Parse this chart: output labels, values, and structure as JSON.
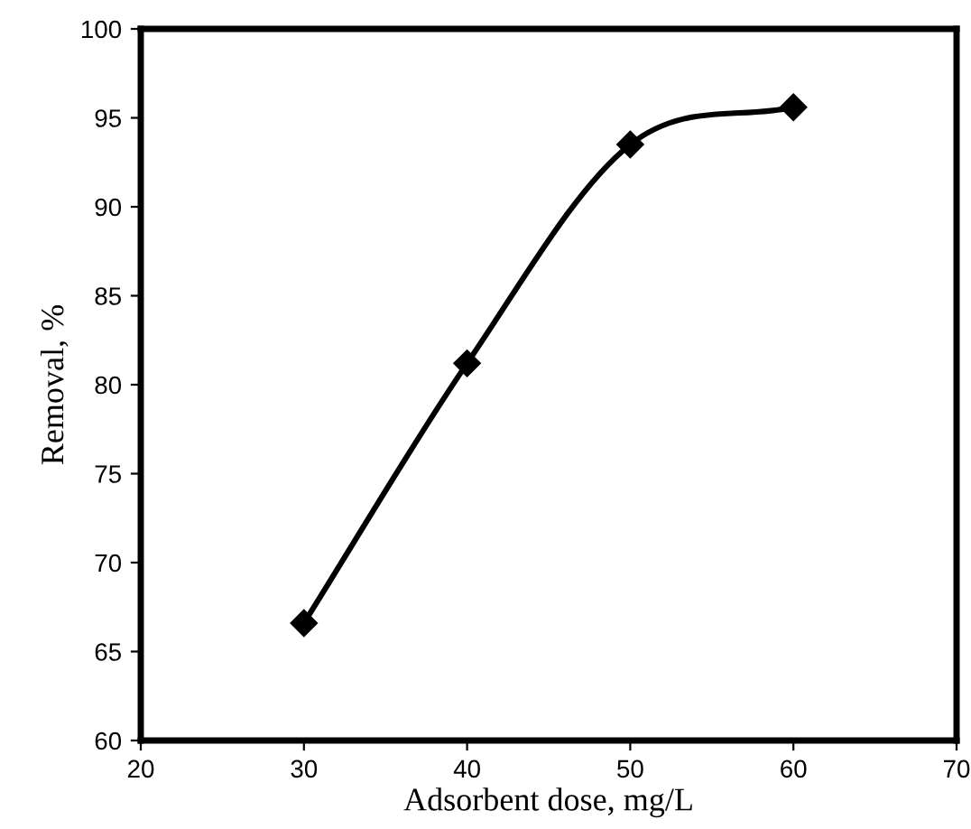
{
  "chart_data": {
    "type": "line",
    "xlabel": "Adsorbent dose, mg/L",
    "ylabel": "Removal, %",
    "x": [
      30,
      40,
      50,
      60
    ],
    "series": [
      {
        "color": "#000000",
        "values": [
          66.6,
          81.2,
          93.5,
          95.6
        ]
      }
    ],
    "xlim": [
      20,
      70
    ],
    "xticks": [
      20,
      30,
      40,
      50,
      60,
      70
    ],
    "ylim": [
      60,
      100
    ],
    "yticks": [
      60,
      65,
      70,
      75,
      80,
      85,
      90,
      95,
      100
    ],
    "marker": "diamond",
    "line_style": "solid",
    "grid": false,
    "legend": false
  }
}
